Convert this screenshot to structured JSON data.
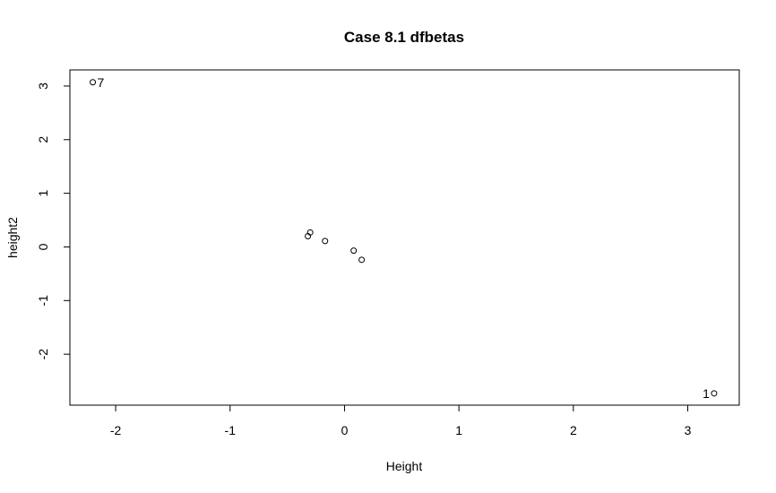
{
  "chart_data": {
    "type": "scatter",
    "title": "Case 8.1 dfbetas",
    "xlabel": "Height",
    "ylabel": "height2",
    "xlim": [
      -2.4,
      3.45
    ],
    "ylim": [
      -2.95,
      3.3
    ],
    "x_ticks": [
      -2,
      -1,
      0,
      1,
      2,
      3
    ],
    "y_ticks": [
      -2,
      -1,
      0,
      1,
      2,
      3
    ],
    "grid": false,
    "legend": "none",
    "points": [
      {
        "x": -2.2,
        "y": 3.07,
        "label": "7",
        "label_side": "right"
      },
      {
        "x": -0.3,
        "y": 0.27
      },
      {
        "x": -0.32,
        "y": 0.2
      },
      {
        "x": -0.17,
        "y": 0.11
      },
      {
        "x": 0.08,
        "y": -0.07
      },
      {
        "x": 0.15,
        "y": -0.24
      },
      {
        "x": 3.23,
        "y": -2.73,
        "label": "1",
        "label_side": "left"
      }
    ]
  }
}
